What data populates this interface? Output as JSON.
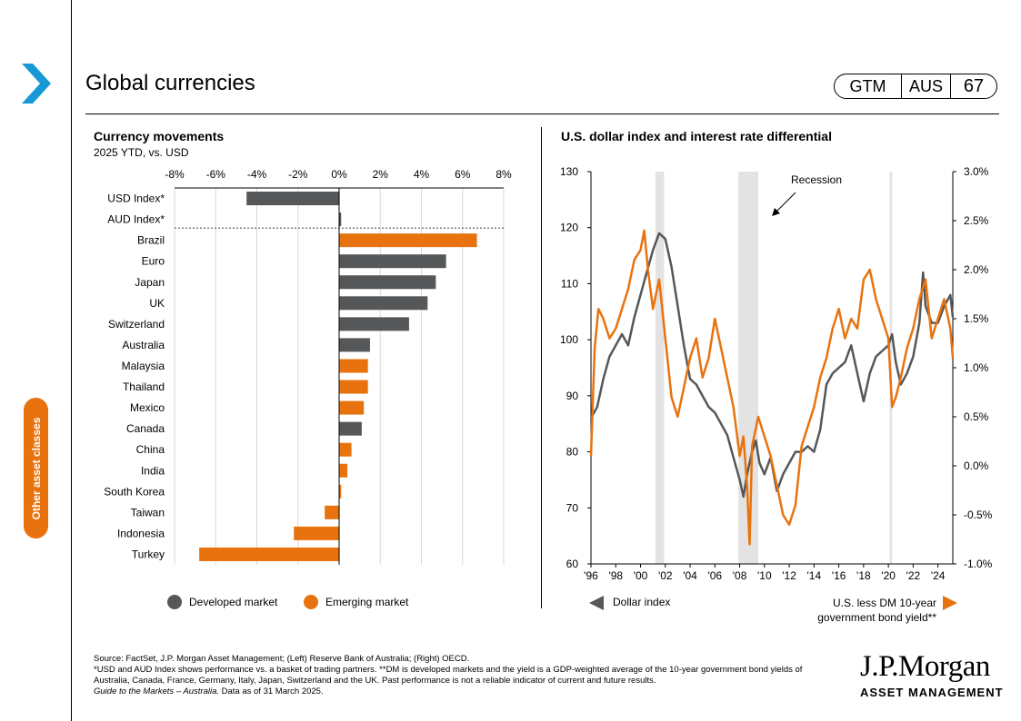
{
  "header": {
    "title": "Global currencies",
    "badge": [
      "GTM",
      "AUS",
      "67"
    ]
  },
  "sidebar": {
    "section_label": "Other asset classes"
  },
  "left_panel": {
    "title": "Currency movements",
    "subtitle": "2025 YTD, vs. USD"
  },
  "right_panel": {
    "title": "U.S. dollar index and interest rate differential"
  },
  "legends": {
    "left": [
      {
        "label": "Developed  market",
        "color": "#555759"
      },
      {
        "label": "Emerging market",
        "color": "#e8730e"
      }
    ],
    "right_left": "Dollar index",
    "right_right_1": "U.S. less DM 10-year",
    "right_right_2": "government  bond yield**"
  },
  "footnote": {
    "line1": "Source: FactSet, J.P. Morgan Asset Management; (Left) Reserve Bank of Australia; (Right) OECD.",
    "line2": "*USD  and AUD Index shows performance vs. a basket of trading partners. **DM is developed markets and the yield is a GDP-weighted average of the 10-year government bond yields of Australia, Canada, France, Germany, Italy, Japan, Switzerland and the UK. Past performance is not a reliable indicator of current and future results.",
    "line3_italic": "Guide to the Markets – Australia.",
    "line3_rest": " Data as of 31 March 2025."
  },
  "logo": {
    "name": "J.P.Morgan",
    "sub": "ASSET MANAGEMENT"
  },
  "chart_data": [
    {
      "type": "bar",
      "orientation": "horizontal",
      "title": "Currency movements",
      "subtitle": "2025 YTD, vs. USD",
      "xlim": [
        -8,
        8
      ],
      "xticks": [
        "-8%",
        "-6%",
        "-4%",
        "-2%",
        "0%",
        "2%",
        "4%",
        "6%",
        "8%"
      ],
      "grid": true,
      "colors": {
        "developed": "#555759",
        "emerging": "#e8730e"
      },
      "categories": [
        "USD Index*",
        "AUD Index*",
        "Brazil",
        "Euro",
        "Japan",
        "UK",
        "Switzerland",
        "Australia",
        "Malaysia",
        "Thailand",
        "Mexico",
        "Canada",
        "China",
        "India",
        "South Korea",
        "Taiwan",
        "Indonesia",
        "Turkey"
      ],
      "values": [
        -4.5,
        0.1,
        6.7,
        5.2,
        4.7,
        4.3,
        3.4,
        1.5,
        1.4,
        1.4,
        1.2,
        1.1,
        0.6,
        0.4,
        0.1,
        -0.7,
        -2.2,
        -6.8
      ],
      "groups": [
        "developed",
        "developed",
        "emerging",
        "developed",
        "developed",
        "developed",
        "developed",
        "developed",
        "emerging",
        "emerging",
        "emerging",
        "developed",
        "emerging",
        "emerging",
        "emerging",
        "emerging",
        "emerging",
        "emerging"
      ],
      "legend": [
        "Developed  market",
        "Emerging market"
      ],
      "legend_position": "bottom"
    },
    {
      "type": "line",
      "title": "U.S. dollar index and interest rate differential",
      "x_ticks": [
        "'96",
        "'98",
        "'00",
        "'02",
        "'04",
        "'06",
        "'08",
        "'10",
        "'12",
        "'14",
        "'16",
        "'18",
        "'20",
        "'22",
        "'24"
      ],
      "xlim": [
        1996,
        2025.2
      ],
      "y_left": {
        "lim": [
          60,
          130
        ],
        "ticks": [
          "60",
          "70",
          "80",
          "90",
          "100",
          "110",
          "120",
          "130"
        ]
      },
      "y_right": {
        "lim": [
          -1.0,
          3.0
        ],
        "ticks": [
          "-1.0%",
          "-0.5%",
          "0.0%",
          "0.5%",
          "1.0%",
          "1.5%",
          "2.0%",
          "2.5%",
          "3.0%"
        ]
      },
      "recessions": [
        [
          2001.2,
          2001.9
        ],
        [
          2007.9,
          2009.5
        ],
        [
          2020.1,
          2020.3
        ]
      ],
      "annotation": "Recession",
      "series": [
        {
          "name": "Dollar index",
          "axis": "left",
          "color": "#555759",
          "x": [
            1996.0,
            1996.5,
            1997.0,
            1997.5,
            1998.0,
            1998.5,
            1999.0,
            1999.5,
            2000.0,
            2000.5,
            2001.0,
            2001.5,
            2002.0,
            2002.5,
            2003.0,
            2003.5,
            2004.0,
            2004.5,
            2005.0,
            2005.5,
            2006.0,
            2006.5,
            2007.0,
            2007.5,
            2008.0,
            2008.3,
            2008.6,
            2009.0,
            2009.3,
            2009.6,
            2010.0,
            2010.5,
            2011.0,
            2011.5,
            2012.0,
            2012.5,
            2013.0,
            2013.5,
            2014.0,
            2014.5,
            2015.0,
            2015.5,
            2016.0,
            2016.5,
            2017.0,
            2017.5,
            2018.0,
            2018.5,
            2019.0,
            2019.5,
            2020.0,
            2020.3,
            2020.6,
            2021.0,
            2021.5,
            2022.0,
            2022.5,
            2022.8,
            2023.0,
            2023.5,
            2024.0,
            2024.5,
            2025.0,
            2025.2
          ],
          "y": [
            86,
            88,
            93,
            97,
            99,
            101,
            99,
            104,
            108,
            112,
            116,
            119,
            118,
            113,
            106,
            99,
            93,
            92,
            90,
            88,
            87,
            85,
            83,
            79,
            75,
            72,
            76,
            80,
            82,
            78,
            76,
            79,
            73,
            76,
            78,
            80,
            80,
            81,
            80,
            84,
            92,
            94,
            95,
            96,
            99,
            94,
            89,
            94,
            97,
            98,
            99,
            101,
            96,
            92,
            94,
            97,
            103,
            112,
            106,
            103,
            103,
            106,
            108,
            104
          ]
        },
        {
          "name": "U.S. less DM 10-year government  bond yield**",
          "axis": "right",
          "color": "#e8730e",
          "x": [
            1996.0,
            1996.3,
            1996.6,
            1997.0,
            1997.5,
            1998.0,
            1998.5,
            1999.0,
            1999.5,
            2000.0,
            2000.3,
            2000.6,
            2001.0,
            2001.5,
            2002.0,
            2002.5,
            2003.0,
            2003.5,
            2004.0,
            2004.5,
            2005.0,
            2005.5,
            2006.0,
            2006.5,
            2007.0,
            2007.5,
            2008.0,
            2008.3,
            2008.6,
            2008.8,
            2009.0,
            2009.5,
            2010.0,
            2010.5,
            2011.0,
            2011.5,
            2012.0,
            2012.5,
            2013.0,
            2013.5,
            2014.0,
            2014.5,
            2015.0,
            2015.5,
            2016.0,
            2016.5,
            2017.0,
            2017.5,
            2018.0,
            2018.5,
            2019.0,
            2019.5,
            2020.0,
            2020.3,
            2020.6,
            2021.0,
            2021.5,
            2022.0,
            2022.5,
            2023.0,
            2023.5,
            2024.0,
            2024.5,
            2025.0,
            2025.2
          ],
          "y": [
            0.1,
            1.2,
            1.6,
            1.5,
            1.3,
            1.4,
            1.6,
            1.8,
            2.1,
            2.2,
            2.4,
            2.0,
            1.6,
            1.9,
            1.3,
            0.7,
            0.5,
            0.8,
            1.1,
            1.3,
            0.9,
            1.1,
            1.5,
            1.2,
            0.9,
            0.6,
            0.1,
            0.3,
            -0.2,
            -0.8,
            0.2,
            0.5,
            0.3,
            0.1,
            -0.2,
            -0.5,
            -0.6,
            -0.4,
            0.2,
            0.4,
            0.6,
            0.9,
            1.1,
            1.4,
            1.6,
            1.3,
            1.5,
            1.4,
            1.9,
            2.0,
            1.7,
            1.5,
            1.3,
            0.6,
            0.7,
            0.9,
            1.2,
            1.4,
            1.7,
            1.9,
            1.3,
            1.5,
            1.7,
            1.4,
            1.1
          ]
        }
      ]
    }
  ]
}
